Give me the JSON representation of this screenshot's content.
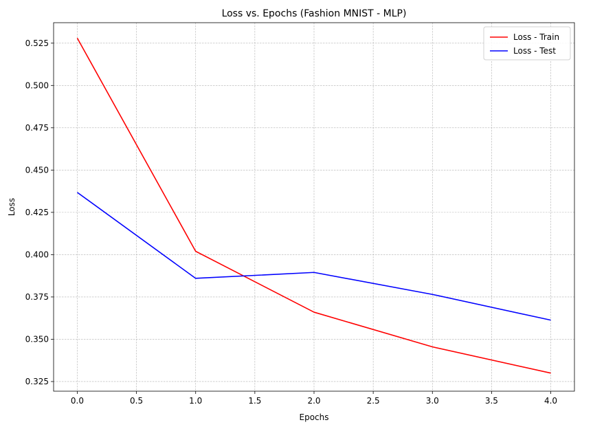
{
  "chart_data": {
    "type": "line",
    "title": "Loss vs. Epochs (Fashion MNIST - MLP)",
    "xlabel": "Epochs",
    "ylabel": "Loss",
    "x": [
      0,
      1,
      2,
      3,
      4
    ],
    "xlim": [
      -0.2,
      4.2
    ],
    "ylim": [
      0.3193,
      0.5371
    ],
    "xticks": [
      0.0,
      0.5,
      1.0,
      1.5,
      2.0,
      2.5,
      3.0,
      3.5,
      4.0
    ],
    "xtick_labels": [
      "0.0",
      "0.5",
      "1.0",
      "1.5",
      "2.0",
      "2.5",
      "3.0",
      "3.5",
      "4.0"
    ],
    "yticks": [
      0.325,
      0.35,
      0.375,
      0.4,
      0.425,
      0.45,
      0.475,
      0.5,
      0.525
    ],
    "ytick_labels": [
      "0.325",
      "0.350",
      "0.375",
      "0.400",
      "0.425",
      "0.450",
      "0.475",
      "0.500",
      "0.525"
    ],
    "grid": true,
    "legend_position": "top-right",
    "series": [
      {
        "name": "Loss - Train",
        "color": "#ff0000",
        "values": [
          0.528,
          0.402,
          0.366,
          0.3455,
          0.33
        ]
      },
      {
        "name": "Loss - Test",
        "color": "#0000ff",
        "values": [
          0.4368,
          0.386,
          0.3895,
          0.3765,
          0.3613
        ]
      }
    ]
  }
}
